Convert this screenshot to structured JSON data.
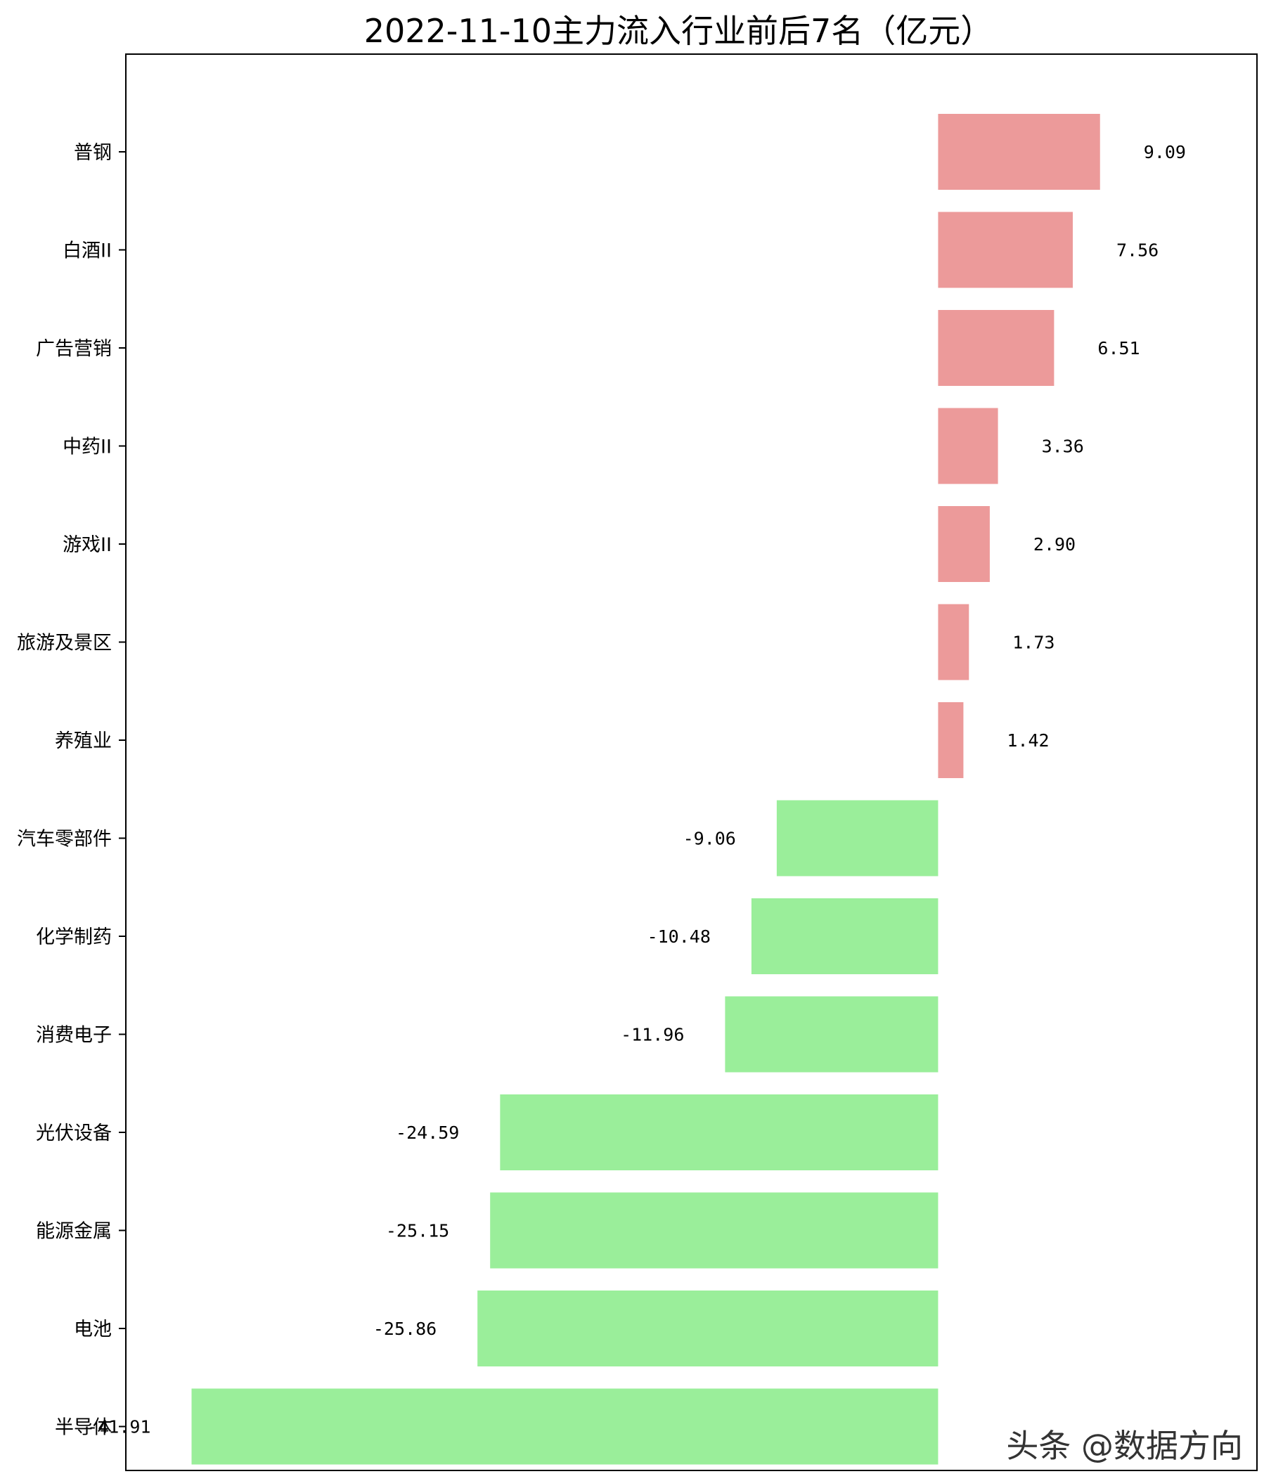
{
  "chart_data": {
    "type": "bar",
    "orientation": "horizontal",
    "title": "2022-11-10主力流入行业前后7名（亿元）",
    "xlabel": "",
    "ylabel": "",
    "xlim": [
      -45.6,
      17.9
    ],
    "grid": false,
    "categories": [
      "普钢",
      "白酒II",
      "广告营销",
      "中药II",
      "游戏II",
      "旅游及景区",
      "养殖业",
      "汽车零部件",
      "化学制药",
      "消费电子",
      "光伏设备",
      "能源金属",
      "电池",
      "半导体"
    ],
    "values": [
      9.09,
      7.56,
      6.51,
      3.36,
      2.9,
      1.73,
      1.42,
      -9.06,
      -10.48,
      -11.96,
      -24.59,
      -25.15,
      -25.86,
      -41.91
    ],
    "value_labels": [
      "9.09",
      "7.56",
      "6.51",
      "3.36",
      "2.90",
      "1.73",
      "1.42",
      "-9.06",
      "-10.48",
      "-11.96",
      "-24.59",
      "-25.15",
      "-25.86",
      "-41.91"
    ],
    "colors": {
      "positive": "#ec9a9a",
      "negative": "#9aee9a"
    }
  },
  "watermark": "头条 @数据方向"
}
